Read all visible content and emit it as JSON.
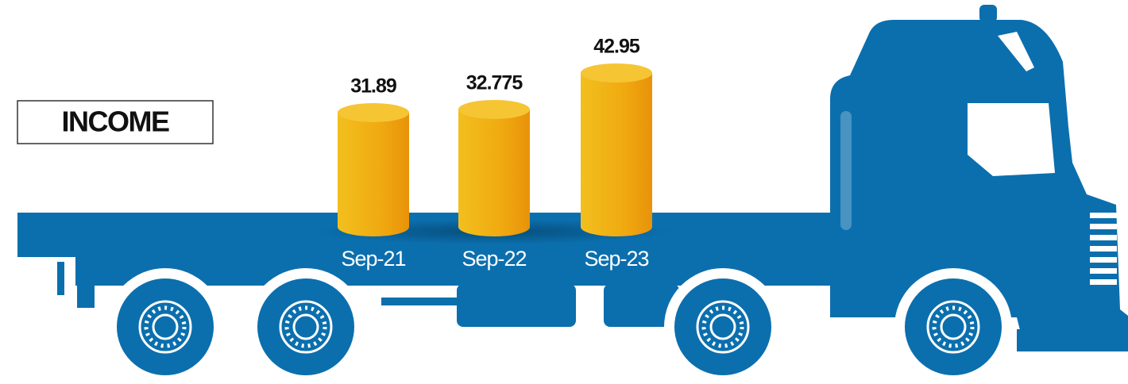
{
  "chart_data": {
    "type": "cylinder",
    "title": "INCOME",
    "categories": [
      "Sep-21",
      "Sep-22",
      "Sep-23"
    ],
    "values": [
      31.89,
      32.775,
      42.95
    ],
    "color": "#f0a500"
  }
}
